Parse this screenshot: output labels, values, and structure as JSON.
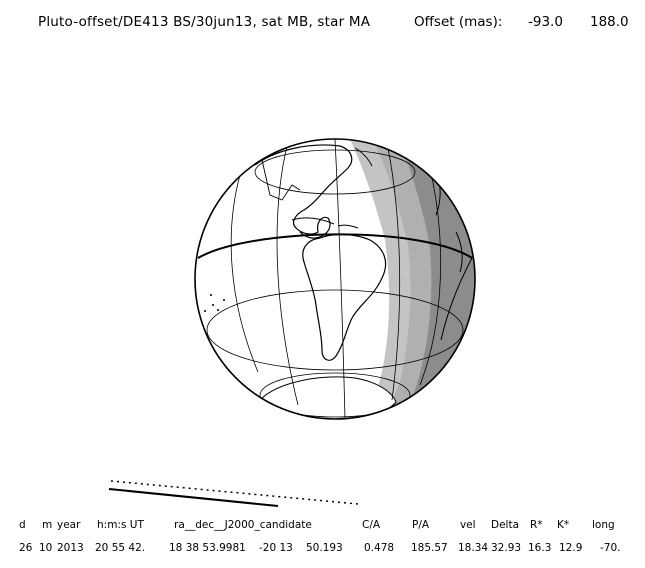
{
  "header": {
    "title": "Pluto-offset/DE413 BS/30jun13, sat MB, star MA",
    "offset_label": "Offset (mas):",
    "offset_x": "-93.0",
    "offset_y": "188.0"
  },
  "colors": {
    "night": "#8c8c8c",
    "twilight": "#c4c4c4",
    "day": "#ffffff",
    "lines": "#000000"
  },
  "table": {
    "headers": [
      "d",
      "m",
      "year",
      "h:m:s UT",
      "ra__dec__J2000_candidate",
      "C/A",
      "P/A",
      "vel",
      "Delta",
      "R*",
      "K*",
      "long"
    ],
    "values": [
      "26",
      "10",
      "2013",
      "20 55 42.",
      "18 38 53.9981",
      "-20 13",
      "50.193",
      "0.478",
      "185.57",
      "18.34",
      "32.93",
      "16.3",
      "12.9",
      "-70."
    ]
  }
}
